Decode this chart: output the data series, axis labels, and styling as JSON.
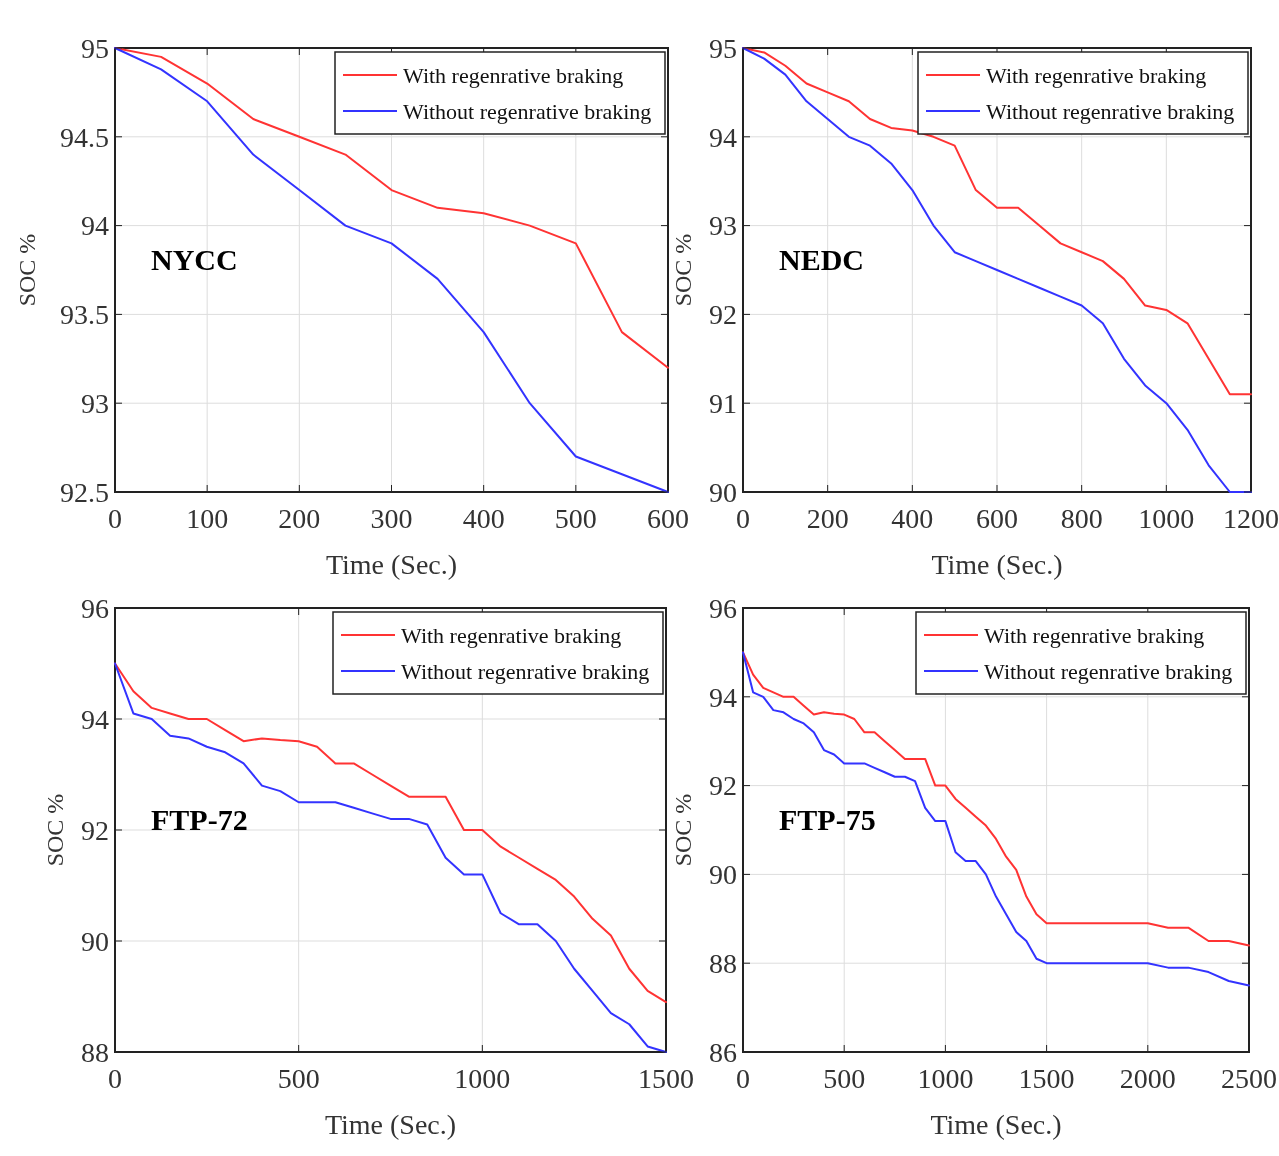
{
  "chart_data": [
    {
      "type": "line",
      "xlabel": "Time (Sec.)",
      "ylabel": "SOC %",
      "annotations": [
        "NYCC"
      ],
      "x": [
        0,
        50,
        100,
        150,
        200,
        250,
        300,
        350,
        400,
        450,
        500,
        550,
        600
      ],
      "series": [
        {
          "name": "With regenrative braking",
          "color": "#ff3333",
          "values": [
            95,
            94.95,
            94.8,
            94.6,
            94.5,
            94.4,
            94.2,
            94.1,
            94.07,
            94.0,
            93.9,
            93.4,
            93.2
          ]
        },
        {
          "name": "Without regenrative braking",
          "color": "#3333ff",
          "values": [
            95,
            94.88,
            94.7,
            94.4,
            94.2,
            94.0,
            93.9,
            93.7,
            93.4,
            93.0,
            92.7,
            92.6,
            92.5
          ]
        }
      ],
      "xlim": [
        0,
        600
      ],
      "xticks": [
        0,
        100,
        200,
        300,
        400,
        500,
        600
      ],
      "ylim": [
        92.5,
        95
      ],
      "yticks": [
        92.5,
        93,
        93.5,
        94,
        94.5,
        95
      ],
      "grid": true,
      "legend": "top right"
    },
    {
      "type": "line",
      "xlabel": "Time (Sec.)",
      "ylabel": "SOC %",
      "annotations": [
        "NEDC"
      ],
      "x": [
        0,
        50,
        100,
        150,
        200,
        250,
        300,
        350,
        400,
        450,
        500,
        550,
        600,
        650,
        700,
        750,
        800,
        850,
        900,
        950,
        1000,
        1050,
        1100,
        1150,
        1200
      ],
      "series": [
        {
          "name": "With regenrative braking",
          "color": "#ff3333",
          "values": [
            95,
            94.95,
            94.8,
            94.6,
            94.5,
            94.4,
            94.2,
            94.1,
            94.07,
            94.0,
            93.9,
            93.4,
            93.2,
            93.2,
            93.0,
            92.8,
            92.7,
            92.6,
            92.4,
            92.1,
            92.05,
            91.9,
            91.5,
            91.1,
            91.1
          ]
        },
        {
          "name": "Without regenrative braking",
          "color": "#3333ff",
          "values": [
            95,
            94.88,
            94.7,
            94.4,
            94.2,
            94.0,
            93.9,
            93.7,
            93.4,
            93.0,
            92.7,
            92.6,
            92.5,
            92.4,
            92.3,
            92.2,
            92.1,
            91.9,
            91.5,
            91.2,
            91.0,
            90.7,
            90.3,
            90.0,
            90.0
          ]
        }
      ],
      "xlim": [
        0,
        1200
      ],
      "xticks": [
        0,
        200,
        400,
        600,
        800,
        1000,
        1200
      ],
      "ylim": [
        90,
        95
      ],
      "yticks": [
        90,
        91,
        92,
        93,
        94,
        95
      ],
      "grid": true,
      "legend": "top right"
    },
    {
      "type": "line",
      "xlabel": "Time (Sec.)",
      "ylabel": "SOC %",
      "annotations": [
        "FTP-72"
      ],
      "x": [
        0,
        50,
        100,
        150,
        200,
        250,
        300,
        350,
        400,
        450,
        500,
        550,
        600,
        650,
        700,
        750,
        800,
        850,
        900,
        950,
        1000,
        1050,
        1100,
        1150,
        1200,
        1250,
        1300,
        1350,
        1400,
        1450,
        1500
      ],
      "series": [
        {
          "name": "With regenrative braking",
          "color": "#ff3333",
          "values": [
            95,
            94.5,
            94.2,
            94.1,
            94.0,
            94.0,
            93.8,
            93.6,
            93.65,
            93.62,
            93.6,
            93.5,
            93.2,
            93.2,
            93.0,
            92.8,
            92.6,
            92.6,
            92.6,
            92.0,
            92.0,
            91.7,
            91.5,
            91.3,
            91.1,
            90.8,
            90.4,
            90.1,
            89.5,
            89.1,
            88.9
          ]
        },
        {
          "name": "Without regenrative braking",
          "color": "#3333ff",
          "values": [
            95,
            94.1,
            94.0,
            93.7,
            93.65,
            93.5,
            93.4,
            93.2,
            92.8,
            92.7,
            92.5,
            92.5,
            92.5,
            92.4,
            92.3,
            92.2,
            92.2,
            92.1,
            91.5,
            91.2,
            91.2,
            90.5,
            90.3,
            90.3,
            90.0,
            89.5,
            89.1,
            88.7,
            88.5,
            88.1,
            88.0
          ]
        }
      ],
      "xlim": [
        0,
        1500
      ],
      "xticks": [
        0,
        500,
        1000,
        1500
      ],
      "ylim": [
        88,
        96
      ],
      "yticks": [
        88,
        90,
        92,
        94,
        96
      ],
      "grid": true,
      "legend": "top right"
    },
    {
      "type": "line",
      "xlabel": "Time (Sec.)",
      "ylabel": "SOC %",
      "annotations": [
        "FTP-75"
      ],
      "x": [
        0,
        50,
        100,
        150,
        200,
        250,
        300,
        350,
        400,
        450,
        500,
        550,
        600,
        650,
        700,
        750,
        800,
        850,
        900,
        950,
        1000,
        1050,
        1100,
        1150,
        1200,
        1250,
        1300,
        1350,
        1400,
        1450,
        1500,
        1600,
        1700,
        1800,
        1900,
        2000,
        2100,
        2200,
        2300,
        2400,
        2500
      ],
      "series": [
        {
          "name": "With regenrative braking",
          "color": "#ff3333",
          "values": [
            95,
            94.5,
            94.2,
            94.1,
            94.0,
            94.0,
            93.8,
            93.6,
            93.65,
            93.62,
            93.6,
            93.5,
            93.2,
            93.2,
            93.0,
            92.8,
            92.6,
            92.6,
            92.6,
            92.0,
            92.0,
            91.7,
            91.5,
            91.3,
            91.1,
            90.8,
            90.4,
            90.1,
            89.5,
            89.1,
            88.9,
            88.9,
            88.9,
            88.9,
            88.9,
            88.9,
            88.8,
            88.8,
            88.5,
            88.5,
            88.4
          ]
        },
        {
          "name": "Without regenrative braking",
          "color": "#3333ff",
          "values": [
            95,
            94.1,
            94.0,
            93.7,
            93.65,
            93.5,
            93.4,
            93.2,
            92.8,
            92.7,
            92.5,
            92.5,
            92.5,
            92.4,
            92.3,
            92.2,
            92.2,
            92.1,
            91.5,
            91.2,
            91.2,
            90.5,
            90.3,
            90.3,
            90.0,
            89.5,
            89.1,
            88.7,
            88.5,
            88.1,
            88.0,
            88.0,
            88.0,
            88.0,
            88.0,
            88.0,
            87.9,
            87.9,
            87.8,
            87.6,
            87.5
          ]
        }
      ],
      "xlim": [
        0,
        2500
      ],
      "xticks": [
        0,
        500,
        1000,
        1500,
        2000,
        2500
      ],
      "ylim": [
        86,
        96
      ],
      "yticks": [
        86,
        88,
        90,
        92,
        94,
        96
      ],
      "grid": true,
      "legend": "top right"
    }
  ]
}
